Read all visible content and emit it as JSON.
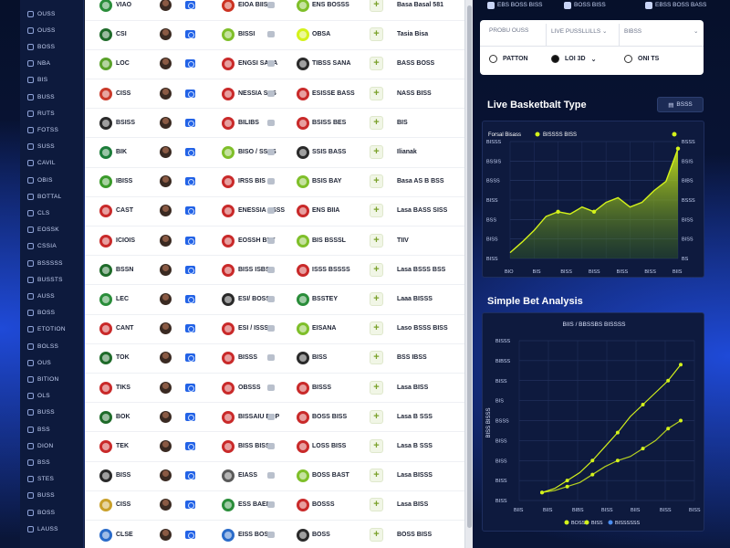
{
  "sidebar": {
    "items": [
      "OUSS",
      "OUSS",
      "BOSS",
      "NBA",
      "BIS",
      "BUSS",
      "RUTS",
      "FOTSS",
      "SUSS",
      "CAVIL",
      "OBIS",
      "BOTTAL",
      "CLS",
      "EOSSK",
      "CSSIA",
      "BSSSSS",
      "BUSSTS",
      "AUSS",
      "BOSS",
      "ETOTION",
      "BOLSS",
      "OUS",
      "BITION",
      "OLS",
      "BUSS",
      "BSS",
      "DION",
      "BSS",
      "STES",
      "BUSS",
      "BOSS",
      "LAUSS"
    ]
  },
  "rows": [
    {
      "team": "VIAO",
      "player": "BISSS",
      "matchup": "EIOA BIIS",
      "team2": "ENS BOSSS",
      "odds": "Basa Basal 581"
    },
    {
      "team": "CSI",
      "player": "BDIS",
      "matchup": "BISSI",
      "team2": "OBSA",
      "odds": "Tasia Bisa"
    },
    {
      "team": "LOC",
      "player": "BS",
      "matchup": "ENGSI SASA",
      "team2": "TIBSS SANA",
      "odds": "BASS BOSS"
    },
    {
      "team": "CISS",
      "player": "BISS",
      "matchup": "NESSIA SSS",
      "team2": "ESISSE BASS",
      "odds": "NASS BISS"
    },
    {
      "team": "BSISS",
      "player": "BISS",
      "matchup": "BILIBS",
      "team2": "BSISS BES",
      "odds": "BIS"
    },
    {
      "team": "BIK",
      "player": "BISS",
      "matchup": "BISO / SSSS",
      "team2": "SSIS BASS",
      "odds": "Ilianak"
    },
    {
      "team": "IBISS",
      "player": "BISS",
      "matchup": "IRSS BIS",
      "team2": "BSIS BAY",
      "odds": "Basa AS B BSS"
    },
    {
      "team": "CAST",
      "player": "BISS",
      "matchup": "ENESSIA SSSS",
      "team2": "ENS BIIA",
      "odds": "Lasa BASS SISS"
    },
    {
      "team": "ICIOIS",
      "player": "BISS",
      "matchup": "EOSSH BET",
      "team2": "BIS BSSSL",
      "odds": "TIIV"
    },
    {
      "team": "BSSN",
      "player": "BISS",
      "matchup": "BISS ISBS",
      "team2": "ISSS BSSSS",
      "odds": "Lasa BSSS BSS"
    },
    {
      "team": "LEC",
      "player": "BISS",
      "matchup": "ESI/ BOSS",
      "team2": "BSSTEY",
      "odds": "Laaa BISSS"
    },
    {
      "team": "CANT",
      "player": "BISS",
      "matchup": "ESI / ISSSA",
      "team2": "EISANA",
      "odds": "Laso BSSS BISS"
    },
    {
      "team": "TOK",
      "player": "BIS",
      "matchup": "BISSS",
      "team2": "BISS",
      "odds": "BSS IBSS"
    },
    {
      "team": "TIKS",
      "player": "BISS",
      "matchup": "OBSSS",
      "team2": "BISSS",
      "odds": "Lasa BISS"
    },
    {
      "team": "BOK",
      "player": "BIS",
      "matchup": "BISSAIU EOP",
      "team2": "BOSS BISS",
      "odds": "Lasa B SSS"
    },
    {
      "team": "TEK",
      "player": "BIS",
      "matchup": "BISS BISS",
      "team2": "LOSS BISS",
      "odds": "Lasa B SSS"
    },
    {
      "team": "BISS",
      "player": "BISS",
      "matchup": "EIASS",
      "team2": "BOSS BAST",
      "odds": "Lasa BISSS"
    },
    {
      "team": "CISS",
      "player": "BISS",
      "matchup": "ESS BAEN",
      "team2": "BOSSS",
      "odds": "Lasa BISS"
    },
    {
      "team": "CLSE",
      "player": "BIS",
      "matchup": "EISS BOSS",
      "team2": "BOSS",
      "odds": "BOSS BISS"
    }
  ],
  "right": {
    "top_tabs": [
      "EBS BOSS BISS",
      "BOSS BISS",
      "EBSS BOSS BASS"
    ],
    "filters": {
      "headers": [
        "PROBU OUSS",
        "LIVE PUSSLLILLS",
        "BIBSS"
      ],
      "options": [
        "PATTON",
        "LOI  3D",
        "ONI TS"
      ]
    },
    "section1_title": "Live Basketbalt Type",
    "section1_button": "BSSS",
    "section2_title": "Simple Bet Analysis"
  },
  "colors": {
    "accent": "#d4f21b",
    "panel": "#0e1a3e",
    "blue_button": "#2262e6"
  },
  "chart_data": [
    {
      "type": "area",
      "title": "",
      "legend": [
        "Forsal Bisass",
        "BISSSS BISS"
      ],
      "x": [
        "BIO",
        "BIS",
        "BISS",
        "BISS",
        "BISS",
        "BISS",
        "BISS",
        "BISS",
        "BISS",
        "BISS",
        "BISS",
        "BISS",
        "BISS",
        "BISS",
        "BIIS"
      ],
      "yticks_left": [
        "BISSS",
        "BSSIS",
        "BSSS",
        "BISS",
        "BSS",
        "BISS",
        "BISS"
      ],
      "yticks_right": [
        "BSSS",
        "BSIS",
        "BIBS",
        "BSSS",
        "BISS",
        "BISS",
        "BS"
      ],
      "x_ticks": [
        "BIO",
        "BIS",
        "BISS",
        "BISS",
        "BISS",
        "BISS",
        "BIIS"
      ],
      "values": [
        5,
        14,
        24,
        36,
        40,
        38,
        44,
        40,
        48,
        52,
        44,
        48,
        58,
        66,
        94
      ],
      "ylim": [
        0,
        100
      ],
      "grid": true
    },
    {
      "type": "line",
      "title": "BIIS / BBSSBS BISSSS",
      "ylabel": "BISS BISSS",
      "x_ticks": [
        "BIIS",
        "BIIS",
        "BIBS",
        "BISS",
        "BIIS",
        "BISS",
        "BISS"
      ],
      "yticks": [
        "BISSS",
        "BIBSS",
        "BISS",
        "BIS",
        "BSSS",
        "BISS",
        "BISS",
        "BISS",
        "BISS"
      ],
      "legend": [
        "BOSS",
        "BISS",
        "BISSSSSS"
      ],
      "series": [
        {
          "name": "BOSS",
          "values": [
            4,
            6,
            10,
            14,
            20,
            27,
            34,
            42,
            48,
            54,
            60,
            68
          ]
        },
        {
          "name": "BISSSSSS",
          "values": [
            4,
            5,
            7,
            9,
            13,
            17,
            20,
            22,
            26,
            30,
            36,
            40
          ]
        }
      ],
      "ylim": [
        0,
        80
      ],
      "grid": true
    }
  ]
}
